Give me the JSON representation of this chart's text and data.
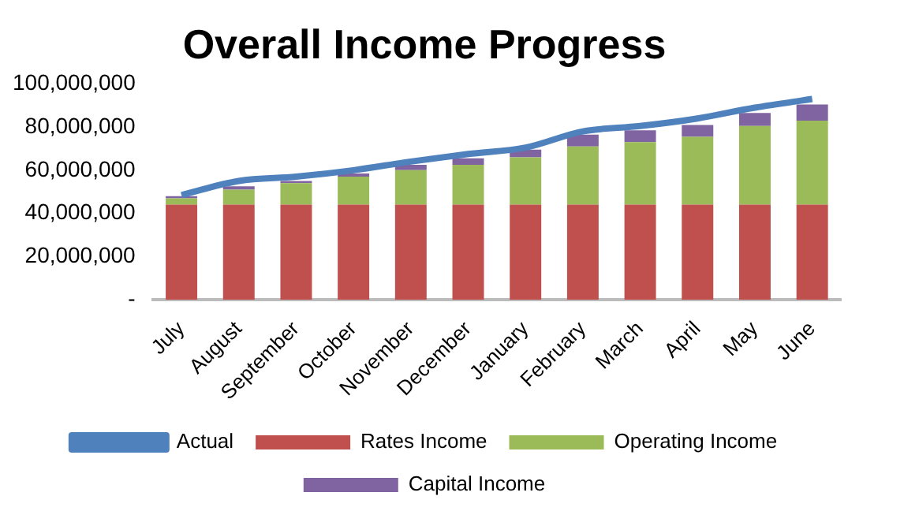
{
  "chart_data": {
    "type": "bar",
    "title": "Overall Income Progress",
    "stacked": true,
    "legend": "bottom",
    "grid": false,
    "marker": "none",
    "categories": [
      "July",
      "August",
      "September",
      "October",
      "November",
      "December",
      "January",
      "February",
      "March",
      "April",
      "May",
      "June"
    ],
    "series": [
      {
        "name": "Rates Income",
        "color": "#c0504d",
        "values": [
          44000000,
          44000000,
          44000000,
          44000000,
          44000000,
          44000000,
          44000000,
          44000000,
          44000000,
          44000000,
          44000000,
          44000000
        ]
      },
      {
        "name": "Operating Income",
        "color": "#9bbb59",
        "values": [
          3000000,
          7000000,
          10000000,
          13000000,
          16000000,
          18500000,
          22000000,
          27000000,
          29000000,
          31500000,
          36500000,
          39000000
        ]
      },
      {
        "name": "Capital Income",
        "color": "#8064a2",
        "values": [
          1000000,
          1500000,
          1000000,
          1500000,
          2500000,
          3000000,
          3500000,
          5500000,
          5500000,
          5500000,
          6000000,
          7500000
        ]
      },
      {
        "name": "Actual",
        "type": "line",
        "color": "#4f81bd",
        "values": [
          48500000,
          55000000,
          57000000,
          60000000,
          64000000,
          67500000,
          70500000,
          78000000,
          80500000,
          84000000,
          89000000,
          93000000
        ]
      }
    ],
    "ylim": [
      0,
      100000000
    ],
    "yticks": [
      {
        "value": 0,
        "label": "-"
      },
      {
        "value": 20000000,
        "label": "20,000,000"
      },
      {
        "value": 40000000,
        "label": "40,000,000"
      },
      {
        "value": 60000000,
        "label": "60,000,000"
      },
      {
        "value": 80000000,
        "label": "80,000,000"
      },
      {
        "value": 100000000,
        "label": "100,000,000"
      }
    ]
  }
}
